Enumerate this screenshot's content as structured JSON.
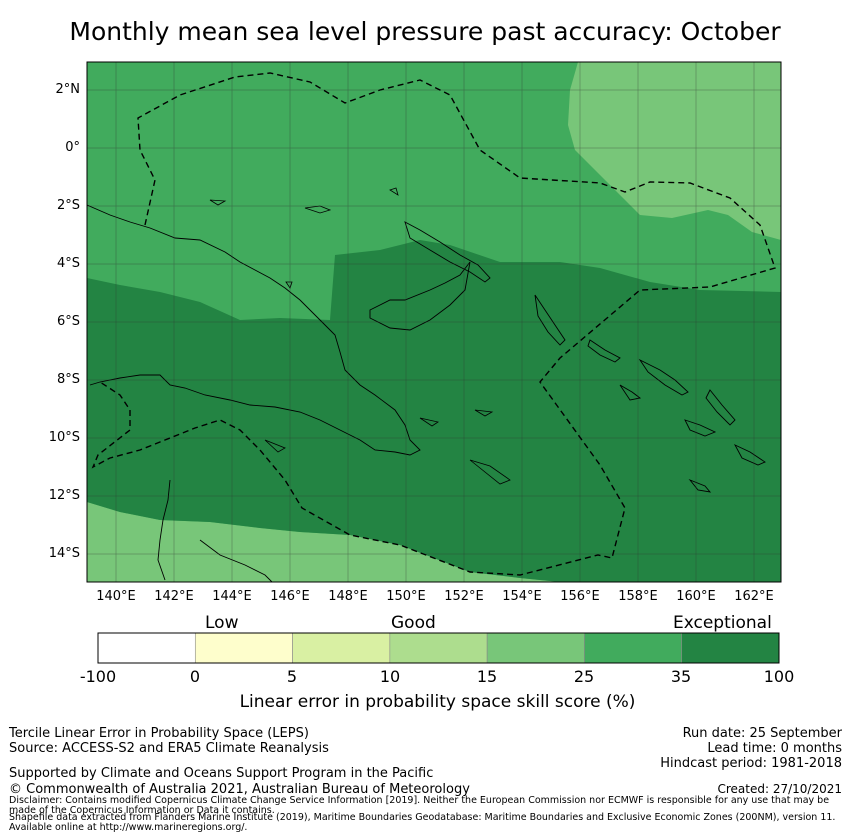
{
  "title": "Monthly mean sea level pressure past accuracy: October",
  "map": {
    "lat_ticks": [
      "2°N",
      "0°",
      "2°S",
      "4°S",
      "6°S",
      "8°S",
      "10°S",
      "12°S",
      "14°S"
    ],
    "lon_ticks": [
      "140°E",
      "142°E",
      "144°E",
      "146°E",
      "148°E",
      "150°E",
      "152°E",
      "154°E",
      "156°E",
      "158°E",
      "160°E",
      "162°E"
    ]
  },
  "colorbar": {
    "categories": [
      "Low",
      "Good",
      "Exceptional"
    ],
    "ticks": [
      "-100",
      "0",
      "5",
      "10",
      "15",
      "25",
      "35",
      "100"
    ],
    "colors": [
      "#ffffff",
      "#fefecc",
      "#d9f0a3",
      "#addd8e",
      "#78c679",
      "#41ab5d",
      "#238443"
    ],
    "label": "Linear error in probability space skill score (%)"
  },
  "footer": {
    "left_line1": "Tercile Linear Error in Probability Space (LEPS)",
    "left_line2": "Source: ACCESS-S2 and ERA5 Climate Reanalysis",
    "support": "Supported by Climate and Oceans Support Program in the Pacific",
    "copyright": "© Commonwealth of Australia 2021, Australian Bureau of Meteorology",
    "run_date": "Run date: 25 September",
    "lead_time": "Lead time: 0 months",
    "hindcast": "Hindcast period: 1981-2018",
    "created": "Created: 27/10/2021",
    "disclaimer": "Disclaimer: Contains modified Copernicus Climate Change Service Information [2019]. Neither the European Commission nor ECMWF is responsible for any use that may be made of the Copernicus Information or Data it contains.",
    "shapefile": "Shapefile data extracted from Flanders Marine Institute (2019), Maritime Boundaries Geodatabase: Maritime Boundaries and Exclusive Economic Zones (200NM), version 11. Available online at http://www.marineregions.org/."
  }
}
